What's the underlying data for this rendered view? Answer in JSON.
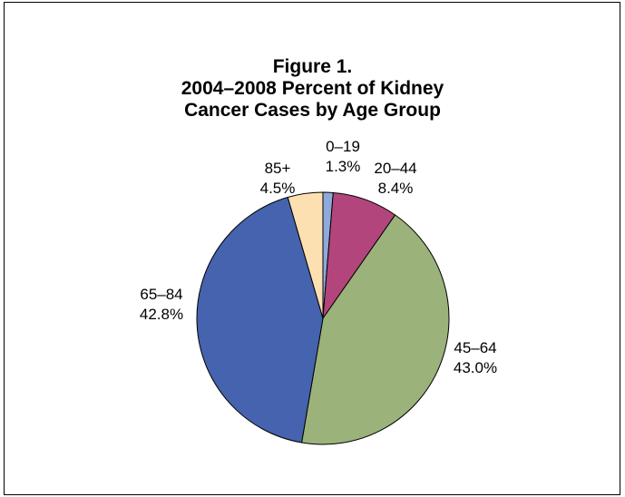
{
  "chart_data": {
    "type": "pie",
    "title": [
      "Figure 1.",
      "2004–2008 Percent of Kidney",
      "Cancer Cases by Age Group"
    ],
    "slices": [
      {
        "label": "0–19",
        "value": 1.3,
        "pct_text": "1.3%",
        "color": "#8eaadb"
      },
      {
        "label": "20–44",
        "value": 8.4,
        "pct_text": "8.4%",
        "color": "#b2457c"
      },
      {
        "label": "45–64",
        "value": 43.0,
        "pct_text": "43.0%",
        "color": "#9bb37a"
      },
      {
        "label": "65–84",
        "value": 42.8,
        "pct_text": "42.8%",
        "color": "#4563ae"
      },
      {
        "label": "85+",
        "value": 4.5,
        "pct_text": "4.5%",
        "color": "#fde0b2"
      }
    ],
    "start_angle": "12 o'clock",
    "direction": "clockwise",
    "legend": "none",
    "slice_outline_color": "#000000"
  }
}
